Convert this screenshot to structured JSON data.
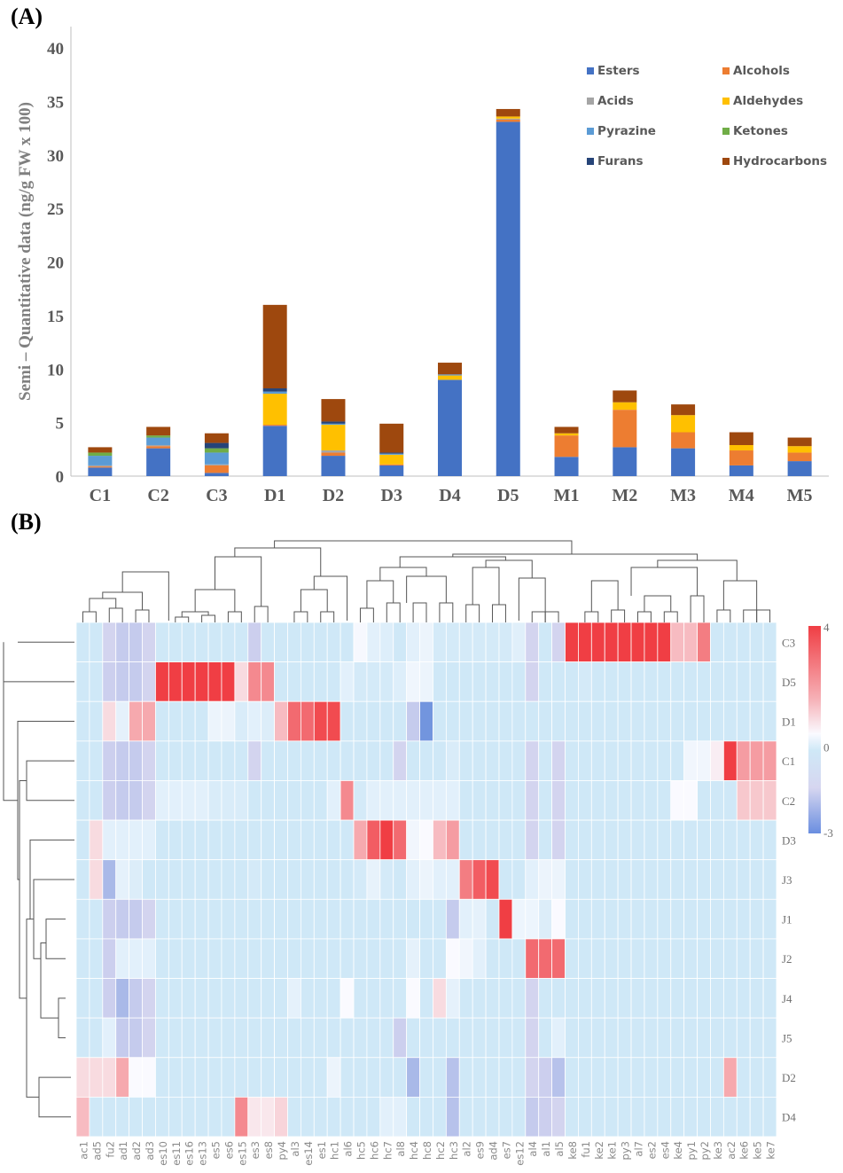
{
  "panel_a_label": "(A)",
  "panel_b_label": "(B)",
  "chart_data": [
    {
      "type": "bar",
      "stacked": true,
      "title": "",
      "xlabel": "",
      "ylabel": "Semi – Quantitative data (ng/g FW x 100)",
      "ylim": [
        0,
        42
      ],
      "yticks": [
        0,
        5,
        10,
        15,
        20,
        25,
        30,
        35,
        40
      ],
      "legend_position": "top-right",
      "categories": [
        "C1",
        "C2",
        "C3",
        "D1",
        "D2",
        "D3",
        "D4",
        "D5",
        "M1",
        "M2",
        "M3",
        "M4",
        "M5"
      ],
      "series": [
        {
          "name": "Esters",
          "color": "#4472C4",
          "values": [
            0.8,
            2.6,
            0.3,
            4.7,
            1.9,
            1.0,
            9.0,
            33.1,
            1.8,
            2.7,
            2.6,
            1.0,
            1.4
          ]
        },
        {
          "name": "Alcohols",
          "color": "#ED7D31",
          "values": [
            0.1,
            0.2,
            0.7,
            0.1,
            0.3,
            0.1,
            0.0,
            0.2,
            2.0,
            3.5,
            1.5,
            1.4,
            0.8
          ]
        },
        {
          "name": "Acids",
          "color": "#A5A5A5",
          "values": [
            0.1,
            0.1,
            0.1,
            0.0,
            0.2,
            0.0,
            0.0,
            0.1,
            0.0,
            0.0,
            0.0,
            0.0,
            0.0
          ]
        },
        {
          "name": "Aldehydes",
          "color": "#FFC000",
          "values": [
            0.0,
            0.0,
            0.0,
            2.9,
            2.4,
            0.9,
            0.4,
            0.2,
            0.2,
            0.7,
            1.6,
            0.5,
            0.6
          ]
        },
        {
          "name": "Pyrazine",
          "color": "#5B9BD5",
          "values": [
            0.9,
            0.7,
            1.1,
            0.2,
            0.1,
            0.1,
            0.1,
            0.0,
            0.0,
            0.0,
            0.0,
            0.0,
            0.0
          ]
        },
        {
          "name": "Ketones",
          "color": "#70AD47",
          "values": [
            0.3,
            0.2,
            0.4,
            0.0,
            0.0,
            0.0,
            0.0,
            0.0,
            0.0,
            0.0,
            0.0,
            0.0,
            0.0
          ]
        },
        {
          "name": "Furans",
          "color": "#264478",
          "values": [
            0.0,
            0.0,
            0.5,
            0.3,
            0.2,
            0.1,
            0.0,
            0.0,
            0.0,
            0.0,
            0.0,
            0.0,
            0.0
          ]
        },
        {
          "name": "Hydrocarbons",
          "color": "#9E480E",
          "values": [
            0.5,
            0.8,
            0.9,
            7.8,
            2.1,
            2.7,
            1.1,
            0.7,
            0.6,
            1.1,
            1.0,
            1.2,
            0.8
          ]
        }
      ]
    },
    {
      "type": "heatmap",
      "title": "",
      "colorbar": {
        "min": -3,
        "max": 4,
        "ticks": [
          "4",
          "0",
          "-3"
        ]
      },
      "rows": [
        "C3",
        "D5",
        "D1",
        "C1",
        "C2",
        "D3",
        "J3",
        "J1",
        "J2",
        "J4",
        "J5",
        "D2",
        "D4"
      ],
      "columns": [
        "ac1",
        "ad5",
        "fu2",
        "ad1",
        "ad2",
        "ad3",
        "es10",
        "es11",
        "es16",
        "es13",
        "es5",
        "es6",
        "es15",
        "es3",
        "es8",
        "py4",
        "al3",
        "es14",
        "es1",
        "hc1",
        "al6",
        "hc5",
        "hc6",
        "hc7",
        "al8",
        "hc4",
        "hc8",
        "hc2",
        "hc3",
        "al2",
        "es9",
        "ad4",
        "es7",
        "es12",
        "al4",
        "al1",
        "al5",
        "ke8",
        "fu1",
        "ke2",
        "ke1",
        "py3",
        "al7",
        "es2",
        "es4",
        "ke4",
        "py1",
        "py2",
        "ke3",
        "ac2",
        "ke6",
        "ke5",
        "ke7"
      ],
      "values": [
        [
          -1,
          -1,
          -1.4,
          -1.6,
          -1.6,
          -1.4,
          -1,
          -1,
          -1,
          -1,
          -1,
          -1,
          -1,
          -1.5,
          -1.1,
          0,
          -1,
          -1,
          -1,
          -1,
          -1,
          0.9,
          -0.5,
          -0.6,
          -1.3,
          -0.5,
          -0.3,
          -0.8,
          -0.8,
          -0.8,
          -0.8,
          -0.8,
          -0.8,
          0.4,
          -1.4,
          -0.9,
          -1.4,
          4,
          4,
          4,
          4,
          4,
          4,
          4,
          4,
          2,
          2,
          3,
          -1,
          -1,
          0,
          -1,
          0
        ],
        [
          0,
          -1.2,
          -1.5,
          -1.6,
          -1.6,
          -1.4,
          4,
          4,
          4,
          4,
          4,
          4,
          1.5,
          2.8,
          2.8,
          -1,
          -1,
          -1,
          -1,
          -1,
          -0.5,
          -0.8,
          -0.8,
          -0.8,
          -0.6,
          -0.2,
          -0.3,
          -1,
          -1.2,
          -1,
          -1,
          -1,
          -1,
          -1,
          -1.4,
          -1.1,
          -1.3,
          -1,
          -0.8,
          -1,
          -1,
          -1,
          -1,
          -1,
          -1,
          -1,
          -1,
          -1,
          -1,
          -1,
          -1,
          -1,
          -1
        ],
        [
          -1,
          -1.2,
          1.5,
          0.5,
          2.3,
          2.3,
          -1,
          -1,
          -1,
          -1,
          -0.3,
          -0.3,
          -0.7,
          -0.5,
          0.3,
          2,
          3.3,
          3.3,
          3.8,
          3.8,
          -1,
          -1,
          -0.9,
          -0.9,
          -1,
          -1.6,
          -2.8,
          -1,
          -0.9,
          -1,
          -1,
          -1,
          -1,
          -1,
          -1.2,
          -0.9,
          -1.2,
          -1,
          -1,
          -1,
          -1,
          -1,
          -1,
          -1,
          -1,
          -1,
          -1,
          -1,
          -1,
          -1,
          -1,
          -1,
          -1
        ],
        [
          -1,
          -1.2,
          -1.5,
          -1.6,
          -1.6,
          -1.4,
          -1,
          -1,
          -1,
          -1,
          -1,
          -1,
          -1,
          -1.4,
          -1.1,
          -1,
          -1,
          -1,
          -1,
          -1,
          -1,
          0,
          -0.9,
          -1,
          -1.4,
          -1,
          -0.9,
          -1,
          -0.7,
          -1,
          -1,
          -1,
          -1,
          -1,
          -1.4,
          -1.1,
          -1.4,
          -1,
          -1,
          -1,
          -1,
          -1,
          -1,
          -1,
          -1,
          -1,
          0.8,
          0.8,
          1.2,
          4,
          2.5,
          2.5,
          2.5
        ],
        [
          -1,
          -1.2,
          -1.5,
          -1.6,
          -1.6,
          -1.4,
          -0.5,
          -0.5,
          -0.5,
          -0.5,
          -0.7,
          -0.7,
          -0.7,
          -0.9,
          -1.1,
          -1,
          -1,
          -1,
          -1,
          -0.5,
          2.8,
          -0.8,
          -0.5,
          -0.5,
          -0.5,
          -0.5,
          -0.5,
          -0.5,
          -0.5,
          -1,
          -1,
          -1,
          -1,
          -1,
          -1.4,
          -1.1,
          -1.4,
          0,
          -1,
          -1,
          -1,
          -1,
          -1,
          -1,
          -1,
          1,
          1,
          0,
          -1,
          -1,
          1.8,
          1.8,
          1.8
        ],
        [
          -1,
          1.5,
          -0.5,
          -0.5,
          -0.5,
          -0.5,
          -1,
          -1,
          -1,
          -1,
          -1,
          -1,
          -1,
          -1.3,
          -1.1,
          -1,
          -1,
          -1,
          -1,
          -1,
          -1,
          2.3,
          3.5,
          4,
          3.3,
          0.8,
          1,
          2,
          2.5,
          -1,
          -1,
          -1,
          -1,
          -1,
          -1.4,
          -1.1,
          -1.4,
          -1,
          -1,
          -1,
          -1,
          -1,
          -1,
          -1,
          -1,
          -1,
          -1,
          -1,
          -1,
          -1,
          -1,
          -1,
          -1
        ],
        [
          -1,
          1.5,
          -2,
          0.5,
          0.3,
          0,
          -1,
          -1,
          -1,
          -1,
          -1,
          -1,
          -1,
          -0.8,
          -1.1,
          -1,
          -1,
          -1,
          -1,
          -1,
          -1,
          -0.8,
          -0.4,
          -0.8,
          -1.3,
          -0.5,
          -0.3,
          -0.5,
          -0.5,
          3,
          3.5,
          3.8,
          -1,
          -1,
          -0.5,
          -0.3,
          -0.3,
          -1,
          -1,
          -1,
          -1,
          -1,
          -1,
          -1,
          -1,
          -1,
          -1,
          -1,
          -1,
          -1,
          -1,
          -1,
          -1
        ],
        [
          -1,
          -1.2,
          -1.5,
          -1.6,
          -1.6,
          -1.4,
          -1,
          -1,
          -1,
          -1,
          -1,
          -1,
          -1,
          -1.3,
          -1.1,
          -1,
          -1,
          -1,
          -1,
          -1,
          -1,
          -1,
          -1,
          -0.9,
          -1.3,
          -1,
          -0.9,
          -1,
          -1.6,
          -0.5,
          0.5,
          -1,
          4,
          0.7,
          0.7,
          0.3,
          1,
          -1,
          -1,
          -1,
          -1,
          -1,
          -1,
          -1,
          -1,
          -1,
          -1,
          -1,
          -1,
          -1,
          -1,
          -1,
          -1
        ],
        [
          -1,
          -1.2,
          -1.5,
          -0.5,
          -0.5,
          -0.5,
          -1,
          -1,
          -1,
          -1,
          -1,
          -1,
          -1,
          0,
          -1.1,
          -1,
          -1,
          -1,
          -1,
          -1,
          -1,
          -1,
          -1,
          -1,
          -1.3,
          0.5,
          0,
          0,
          1,
          0.8,
          -0.5,
          -1,
          -1,
          -1,
          3.3,
          3.3,
          3.3,
          -1,
          -1,
          -1,
          -1,
          -1,
          -1,
          -1,
          -1,
          -1,
          -1,
          -1,
          -1,
          -1,
          -1,
          -1,
          -1
        ],
        [
          -1,
          -1.2,
          -1.5,
          -2,
          -1.6,
          -1.4,
          -1,
          -1,
          -1,
          -1,
          -1,
          -1,
          -1,
          -1.3,
          -1.1,
          -1,
          0.5,
          -1,
          -1,
          -1,
          1,
          -1,
          -1,
          -0.9,
          -1.3,
          1,
          -0.9,
          1.5,
          0.5,
          -1,
          -1,
          -1,
          -1,
          -1,
          -1.4,
          0,
          0,
          -1,
          -1,
          -1,
          -1,
          -1,
          -1,
          -1,
          -1,
          -1,
          -1,
          -1,
          -1,
          -1,
          -1,
          -1,
          -1
        ],
        [
          -1,
          -1.2,
          -0.5,
          -1.6,
          -1.6,
          -1.4,
          -1,
          -1,
          -1,
          -1,
          -1,
          -1,
          -1,
          -1.3,
          -1.1,
          -1,
          -1,
          -1,
          -1,
          -1,
          0,
          -1,
          -1.3,
          -1.2,
          -1.5,
          -1,
          -0.9,
          -1.2,
          -1.2,
          -1,
          -1,
          -1,
          -1,
          -1,
          -1.4,
          -1,
          -0.5,
          -1,
          -1,
          -1,
          -1,
          -1,
          -1,
          -1,
          -1,
          -1,
          -1,
          -1,
          -1,
          -1,
          -1,
          -1,
          -1
        ],
        [
          1.5,
          1.5,
          1.5,
          2.3,
          1,
          1,
          -1,
          -1,
          -1,
          -1,
          -1,
          -1,
          -1,
          -1.3,
          -1.1,
          -1,
          -1,
          -1,
          -1,
          -0.3,
          -1,
          -1,
          -1,
          -1,
          -1.3,
          -2,
          -1,
          -1.3,
          -1.8,
          -1,
          -1,
          -1,
          -1,
          -1,
          -1.4,
          -1.5,
          -1.8,
          -1,
          -1,
          -1,
          -1,
          -1,
          -1,
          -1,
          -1,
          -1,
          -1,
          -1,
          -1,
          2.3,
          -1,
          -1,
          -1
        ],
        [
          2,
          -1,
          -1,
          -1,
          -1,
          -1,
          -1,
          -1,
          -1,
          0,
          0,
          0,
          2.8,
          1.3,
          1.3,
          1.6,
          0,
          -1,
          -1,
          -1,
          -1,
          -1,
          0,
          -0.5,
          -0.5,
          -1,
          -1,
          -1.3,
          -1.8,
          -1,
          -1,
          -1,
          -1,
          -1,
          -1.6,
          -1.5,
          -1.4,
          -1,
          -1,
          -1,
          -1,
          -1,
          -1,
          -1,
          -1,
          -1,
          -1,
          -1,
          -1,
          -1,
          -1,
          -1,
          -1
        ]
      ]
    }
  ]
}
